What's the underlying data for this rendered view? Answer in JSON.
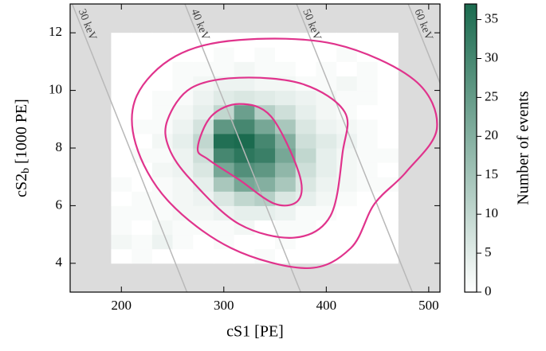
{
  "chart_data": {
    "type": "heatmap",
    "xlabel": "cS1 [PE]",
    "ylabel": {
      "main": "cS2",
      "sub": "b",
      "rest": "[1000 PE]"
    },
    "xlim": [
      150,
      511
    ],
    "ylim": [
      3,
      13
    ],
    "xticks": [
      200,
      300,
      400,
      500
    ],
    "yticks": [
      4,
      6,
      8,
      10,
      12
    ],
    "background": "#dcdcdc",
    "x_bins": [
      190,
      210,
      230,
      250,
      270,
      290,
      310,
      330,
      350,
      370,
      390,
      410,
      430,
      450,
      470
    ],
    "y_bins": [
      4,
      4.5,
      5,
      5.5,
      6,
      6.5,
      7,
      7.5,
      8,
      8.5,
      9,
      9.5,
      10,
      10.5,
      11,
      11.5,
      12
    ],
    "z": [
      [
        0,
        1,
        0,
        0,
        0,
        0,
        0,
        1,
        0,
        0,
        0,
        0,
        0,
        0
      ],
      [
        2,
        1,
        3,
        1,
        0,
        1,
        0,
        0,
        1,
        0,
        0,
        0,
        0,
        0
      ],
      [
        1,
        0,
        2,
        1,
        1,
        1,
        2,
        0,
        1,
        1,
        0,
        0,
        0,
        0
      ],
      [
        1,
        1,
        1,
        2,
        2,
        3,
        4,
        4,
        3,
        1,
        1,
        0,
        0,
        0
      ],
      [
        0,
        1,
        1,
        2,
        3,
        6,
        10,
        12,
        6,
        4,
        2,
        1,
        0,
        0
      ],
      [
        1,
        0,
        1,
        2,
        4,
        14,
        22,
        20,
        14,
        6,
        3,
        2,
        1,
        1
      ],
      [
        0,
        0,
        2,
        3,
        6,
        22,
        28,
        26,
        18,
        8,
        4,
        2,
        1,
        0
      ],
      [
        0,
        1,
        1,
        3,
        8,
        30,
        34,
        32,
        22,
        10,
        4,
        2,
        1,
        1
      ],
      [
        0,
        0,
        2,
        4,
        10,
        36,
        37,
        30,
        20,
        8,
        5,
        3,
        1,
        0
      ],
      [
        0,
        1,
        1,
        3,
        7,
        26,
        30,
        22,
        14,
        6,
        3,
        2,
        1,
        0
      ],
      [
        0,
        0,
        1,
        2,
        4,
        10,
        24,
        12,
        8,
        4,
        2,
        1,
        0,
        0
      ],
      [
        0,
        0,
        1,
        1,
        3,
        5,
        6,
        5,
        4,
        3,
        2,
        1,
        1,
        0
      ],
      [
        0,
        0,
        0,
        1,
        2,
        3,
        3,
        2,
        2,
        1,
        1,
        2,
        1,
        0
      ],
      [
        0,
        0,
        0,
        1,
        1,
        1,
        2,
        1,
        1,
        0,
        1,
        0,
        1,
        0
      ],
      [
        0,
        0,
        0,
        0,
        0,
        1,
        0,
        1,
        0,
        0,
        0,
        1,
        0,
        0
      ],
      [
        0,
        0,
        0,
        0,
        0,
        0,
        0,
        0,
        0,
        0,
        0,
        0,
        0,
        0
      ]
    ],
    "cmap": [
      "#ffffff",
      "#1b6b4f"
    ],
    "colorbar": {
      "label": "Number of events",
      "lim": [
        0,
        37
      ],
      "ticks": [
        0,
        5,
        10,
        15,
        20,
        25,
        30,
        35
      ]
    },
    "contours": [
      {
        "color": "#e0338c",
        "x": [
          274.5,
          287.7,
          315,
          346,
          373,
          373,
          350,
          315,
          285
        ],
        "y": [
          8.0,
          9.1,
          9.53,
          9.1,
          7.17,
          6.2,
          6.06,
          6.9,
          7.6
        ]
      },
      {
        "color": "#e0338c",
        "x": [
          245,
          268,
          315,
          377,
          418,
          416,
          404,
          369,
          315,
          268,
          246.5
        ],
        "y": [
          8.97,
          10.08,
          10.44,
          10.22,
          9.25,
          7.86,
          5.64,
          4.89,
          5.36,
          6.89,
          8.0
        ]
      },
      {
        "color": "#e0338c",
        "x": [
          215,
          253,
          315,
          408,
          486,
          508,
          478,
          447,
          424,
          381,
          307,
          245,
          214
        ],
        "y": [
          9.81,
          11.19,
          11.75,
          11.61,
          10.36,
          8.69,
          7.17,
          6.06,
          4.53,
          3.83,
          4.53,
          6.19,
          8.14
        ]
      }
    ],
    "energy_lines": [
      {
        "label": "30 keV",
        "x": [
          152,
          264
        ],
        "y": [
          13,
          3
        ]
      },
      {
        "label": "40 keV",
        "x": [
          262,
          375
        ],
        "y": [
          13,
          3
        ]
      },
      {
        "label": "50 keV",
        "x": [
          371,
          484
        ],
        "y": [
          13,
          3
        ]
      },
      {
        "label": "60 keV",
        "x": [
          480,
          593
        ],
        "y": [
          13,
          3
        ]
      }
    ]
  }
}
